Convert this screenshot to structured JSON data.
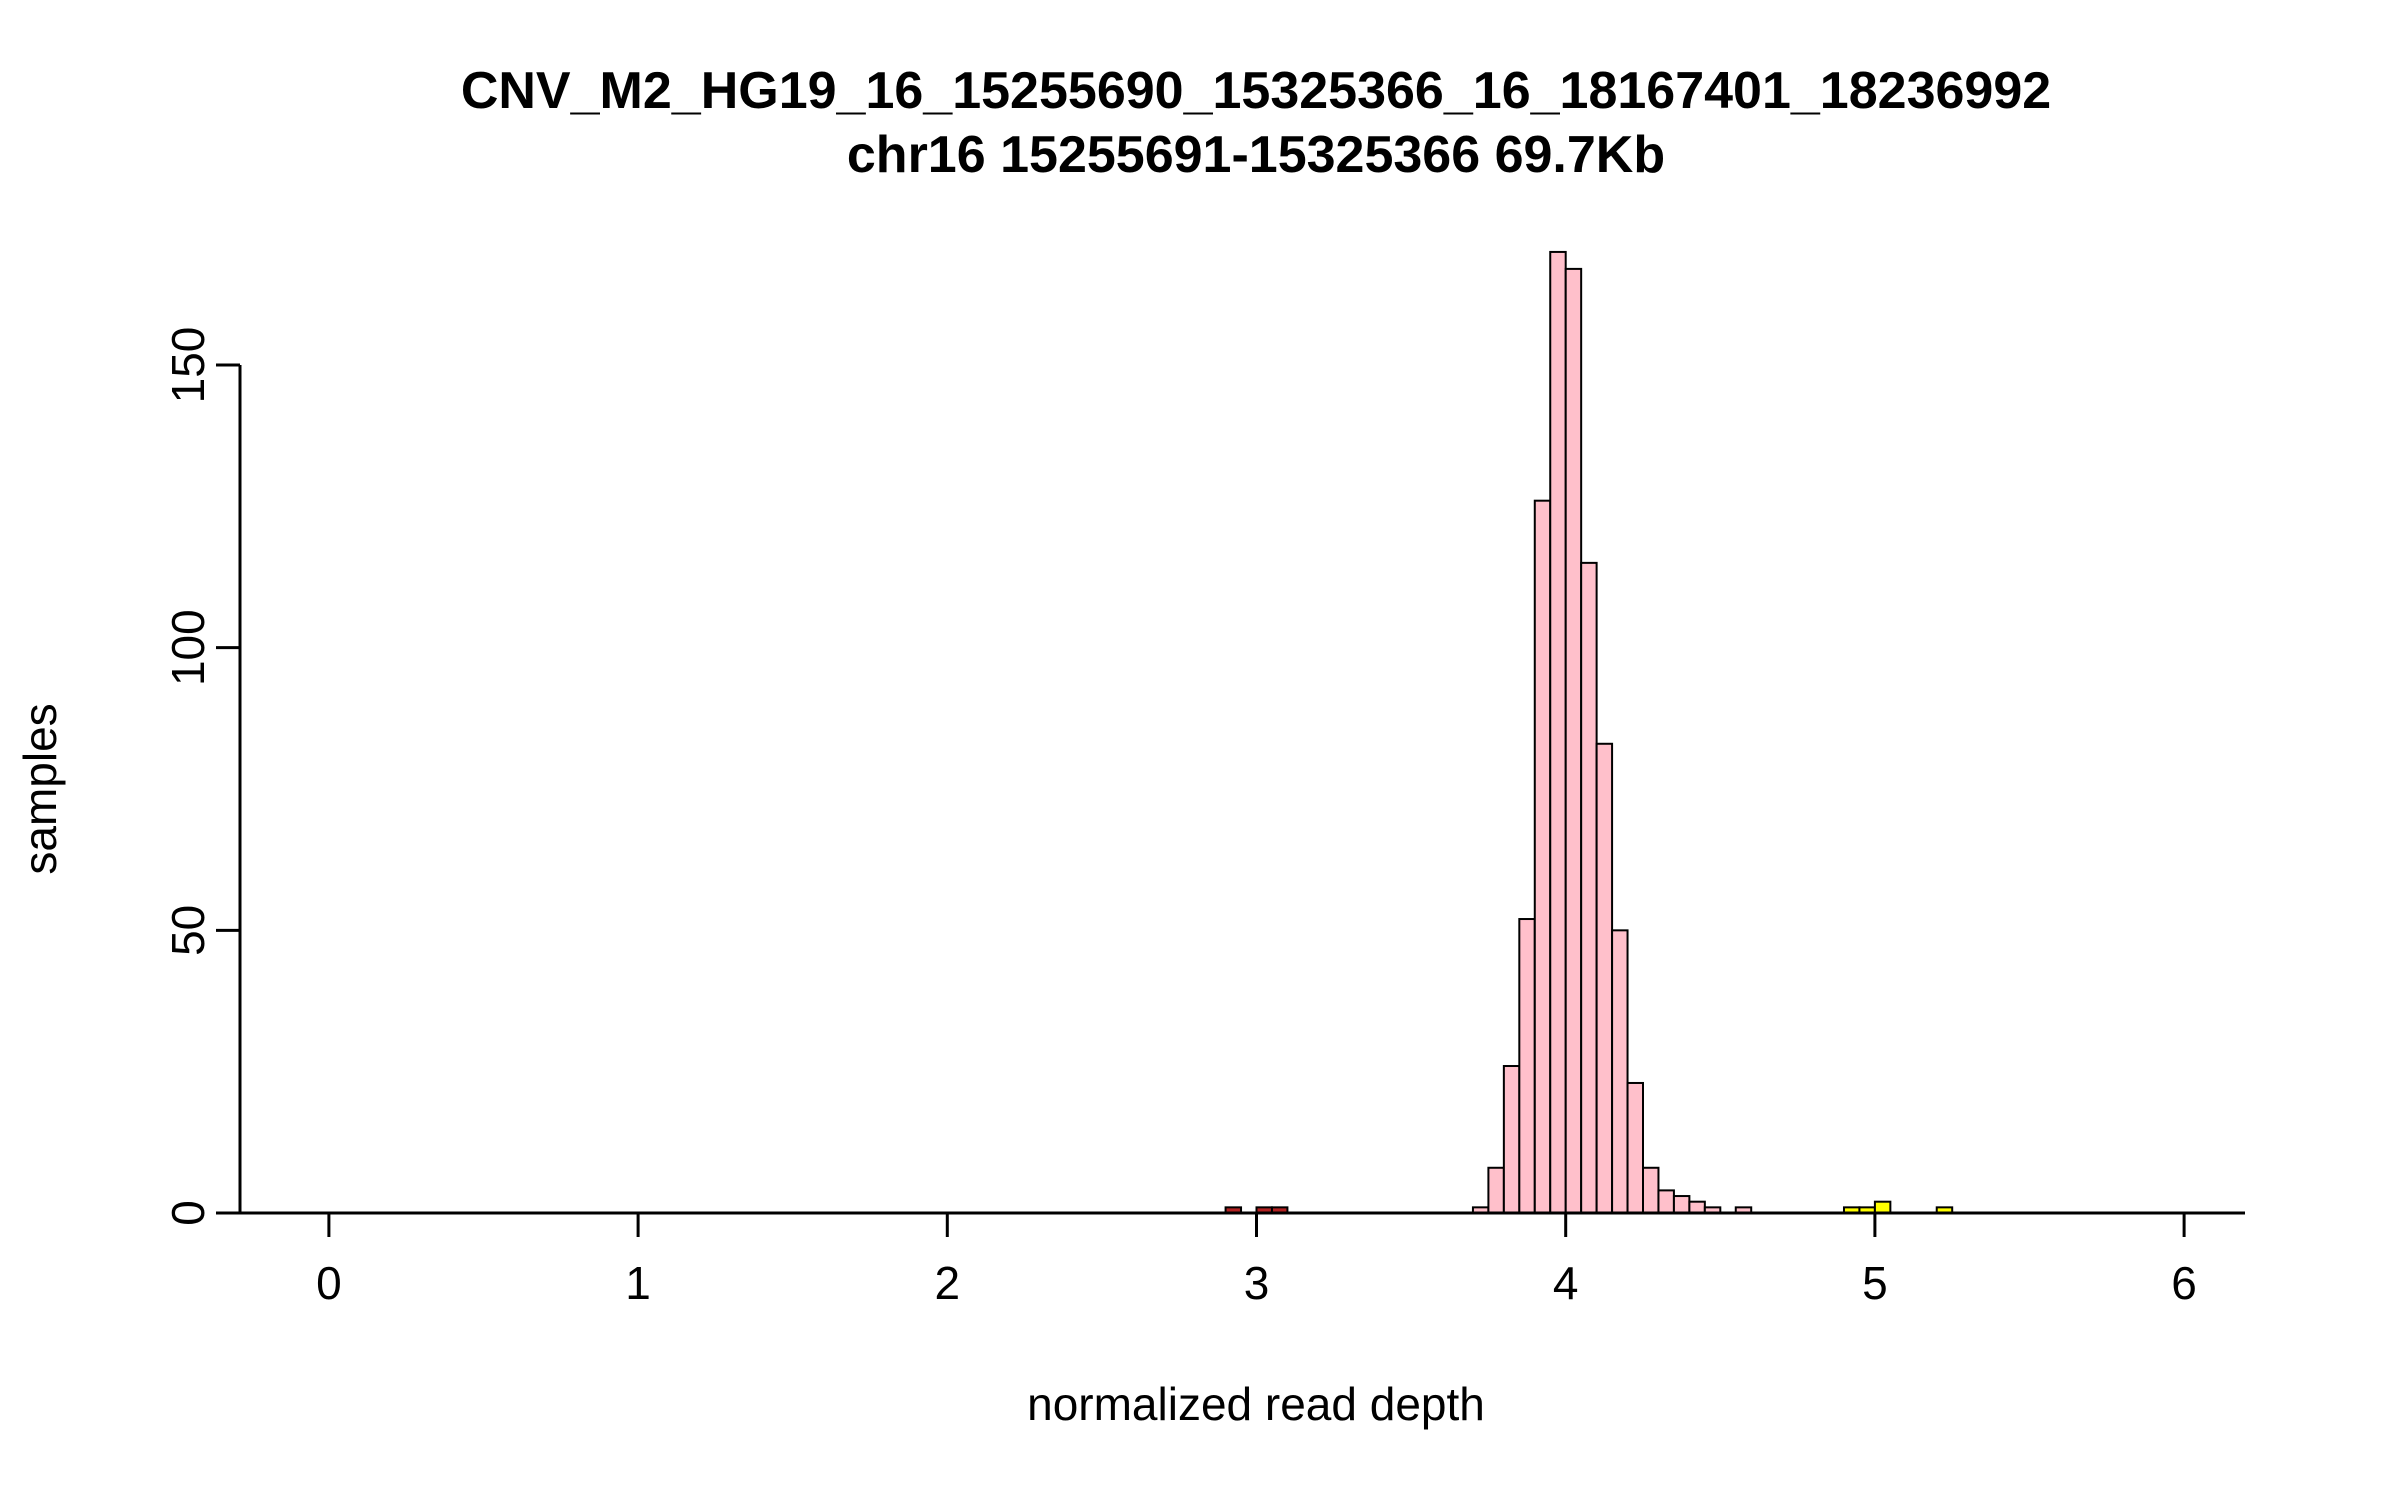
{
  "chart_data": {
    "type": "bar",
    "subtype": "histogram",
    "title": "CNV_M2_HG19_16_15255690_15325366_16_18167401_18236992",
    "subtitle": "chr16 15255691-15325366 69.7Kb",
    "xlabel": "normalized read depth",
    "ylabel": "samples",
    "xlim": [
      0,
      6.15
    ],
    "ylim": [
      0,
      170
    ],
    "x_ticks": [
      0,
      1,
      2,
      3,
      4,
      5,
      6
    ],
    "y_ticks": [
      0,
      50,
      100,
      150
    ],
    "grid": false,
    "legend": "none",
    "bin_width": 0.05,
    "colors": {
      "main": "#ffc0cb",
      "low_outlier": "#b22222",
      "high_outlier": "#ffff00",
      "border": "#000000",
      "axis": "#000000"
    },
    "bins": [
      {
        "x": 2.9,
        "count": 1,
        "color": "low_outlier"
      },
      {
        "x": 3.0,
        "count": 1,
        "color": "low_outlier"
      },
      {
        "x": 3.05,
        "count": 1,
        "color": "low_outlier"
      },
      {
        "x": 3.7,
        "count": 1,
        "color": "main"
      },
      {
        "x": 3.75,
        "count": 8,
        "color": "main"
      },
      {
        "x": 3.8,
        "count": 26,
        "color": "main"
      },
      {
        "x": 3.85,
        "count": 52,
        "color": "main"
      },
      {
        "x": 3.9,
        "count": 126,
        "color": "main"
      },
      {
        "x": 3.95,
        "count": 170,
        "color": "main"
      },
      {
        "x": 4.0,
        "count": 167,
        "color": "main"
      },
      {
        "x": 4.05,
        "count": 115,
        "color": "main"
      },
      {
        "x": 4.1,
        "count": 83,
        "color": "main"
      },
      {
        "x": 4.15,
        "count": 50,
        "color": "main"
      },
      {
        "x": 4.2,
        "count": 23,
        "color": "main"
      },
      {
        "x": 4.25,
        "count": 8,
        "color": "main"
      },
      {
        "x": 4.3,
        "count": 4,
        "color": "main"
      },
      {
        "x": 4.35,
        "count": 3,
        "color": "main"
      },
      {
        "x": 4.4,
        "count": 2,
        "color": "main"
      },
      {
        "x": 4.45,
        "count": 1,
        "color": "main"
      },
      {
        "x": 4.55,
        "count": 1,
        "color": "main"
      },
      {
        "x": 4.9,
        "count": 1,
        "color": "high_outlier"
      },
      {
        "x": 4.95,
        "count": 1,
        "color": "high_outlier"
      },
      {
        "x": 5.0,
        "count": 2,
        "color": "high_outlier"
      },
      {
        "x": 5.2,
        "count": 1,
        "color": "high_outlier"
      }
    ]
  }
}
